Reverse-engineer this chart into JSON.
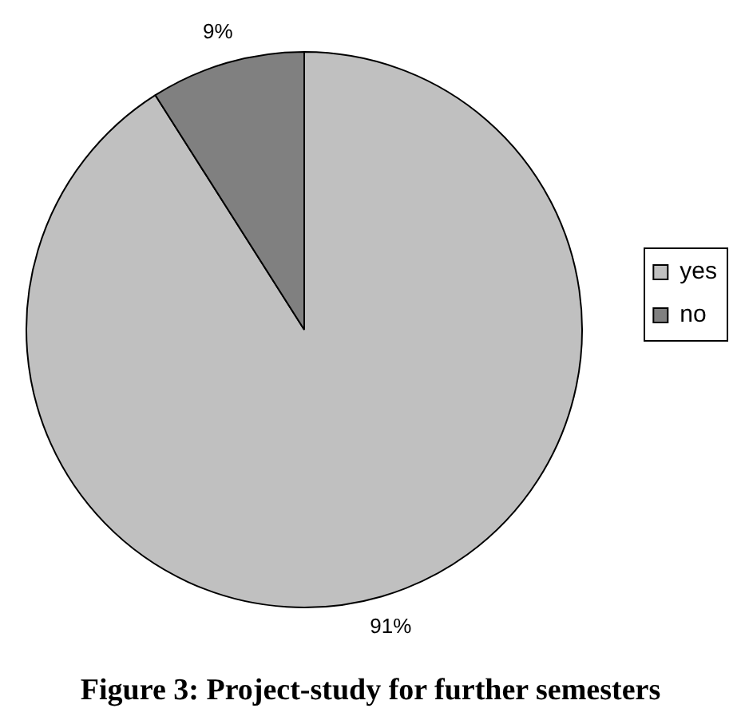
{
  "chart_data": {
    "type": "pie",
    "title": "Figure 3: Project-study for further semesters",
    "categories": [
      "yes",
      "no"
    ],
    "values": [
      91,
      9
    ],
    "colors": [
      "#c0c0c0",
      "#808080"
    ],
    "value_labels": [
      "91%",
      "9%"
    ],
    "legend": "right"
  }
}
